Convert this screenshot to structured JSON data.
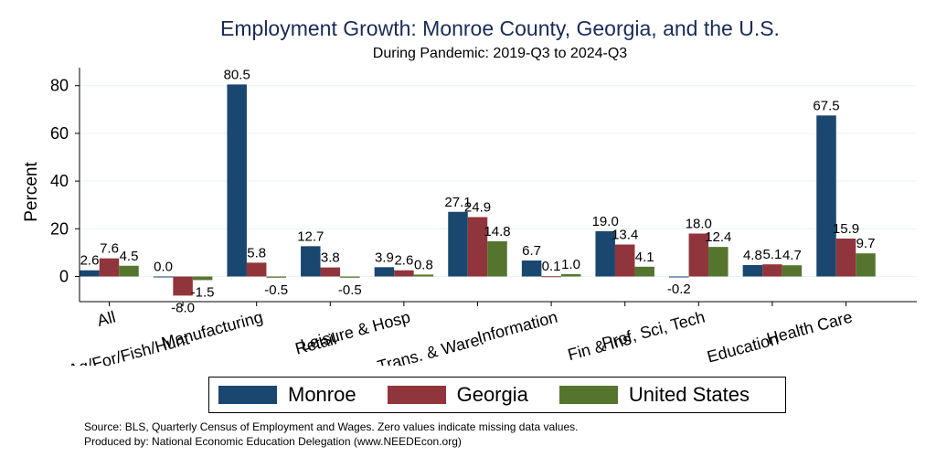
{
  "chart_data": {
    "type": "bar",
    "title": "Employment Growth: Monroe County, Georgia, and the U.S.",
    "subtitle": "During Pandemic: 2019-Q3 to 2024-Q3",
    "xlabel": "",
    "ylabel": "Percent",
    "ylim": [
      -15,
      87
    ],
    "yticks": [
      0,
      20,
      40,
      60,
      80
    ],
    "grid": true,
    "legend_position": "bottom",
    "categories": [
      "All",
      "Ag/For/Fish/Hunt",
      "Manufacturing",
      "Retail",
      "Leisure & Hosp",
      "Trans. & Ware.",
      "Information",
      "Fin & Ins",
      "Prof, Sci, Tech",
      "Education",
      "Health Care"
    ],
    "series": [
      {
        "name": "Monroe",
        "color": "#1a476f",
        "values": [
          2.6,
          0.0,
          80.5,
          12.7,
          3.9,
          27.1,
          6.7,
          19.0,
          -0.2,
          4.8,
          67.5
        ],
        "labels": [
          "2.6",
          "0.0",
          "80.5",
          "12.7",
          "3.9",
          "27.1",
          "6.7",
          "19.0",
          "-0.2",
          "4.8",
          "67.5"
        ]
      },
      {
        "name": "Georgia",
        "color": "#90353b",
        "values": [
          7.6,
          -8.0,
          5.8,
          3.8,
          2.6,
          24.9,
          0.1,
          13.4,
          18.0,
          5.1,
          15.9
        ],
        "labels": [
          "7.6",
          "-8.0",
          "5.8",
          "3.8",
          "2.6",
          "24.9",
          "0.1",
          "13.4",
          "18.0",
          "5.1",
          "15.9"
        ]
      },
      {
        "name": "United States",
        "color": "#55752f",
        "values": [
          4.5,
          -1.5,
          -0.5,
          -0.5,
          0.8,
          14.8,
          1.0,
          4.1,
          12.4,
          4.7,
          9.7
        ],
        "labels": [
          "4.5",
          "-1.5",
          "-0.5",
          "-0.5",
          "0.8",
          "14.8",
          "1.0",
          "4.1",
          "12.4",
          "4.7",
          "9.7"
        ]
      }
    ]
  },
  "footer": {
    "source": "Source: BLS, Quarterly Census of Employment and Wages. Zero values indicate missing data values.",
    "produced": "Produced by: National Economic Education Delegation (www.NEEDEcon.org)"
  }
}
